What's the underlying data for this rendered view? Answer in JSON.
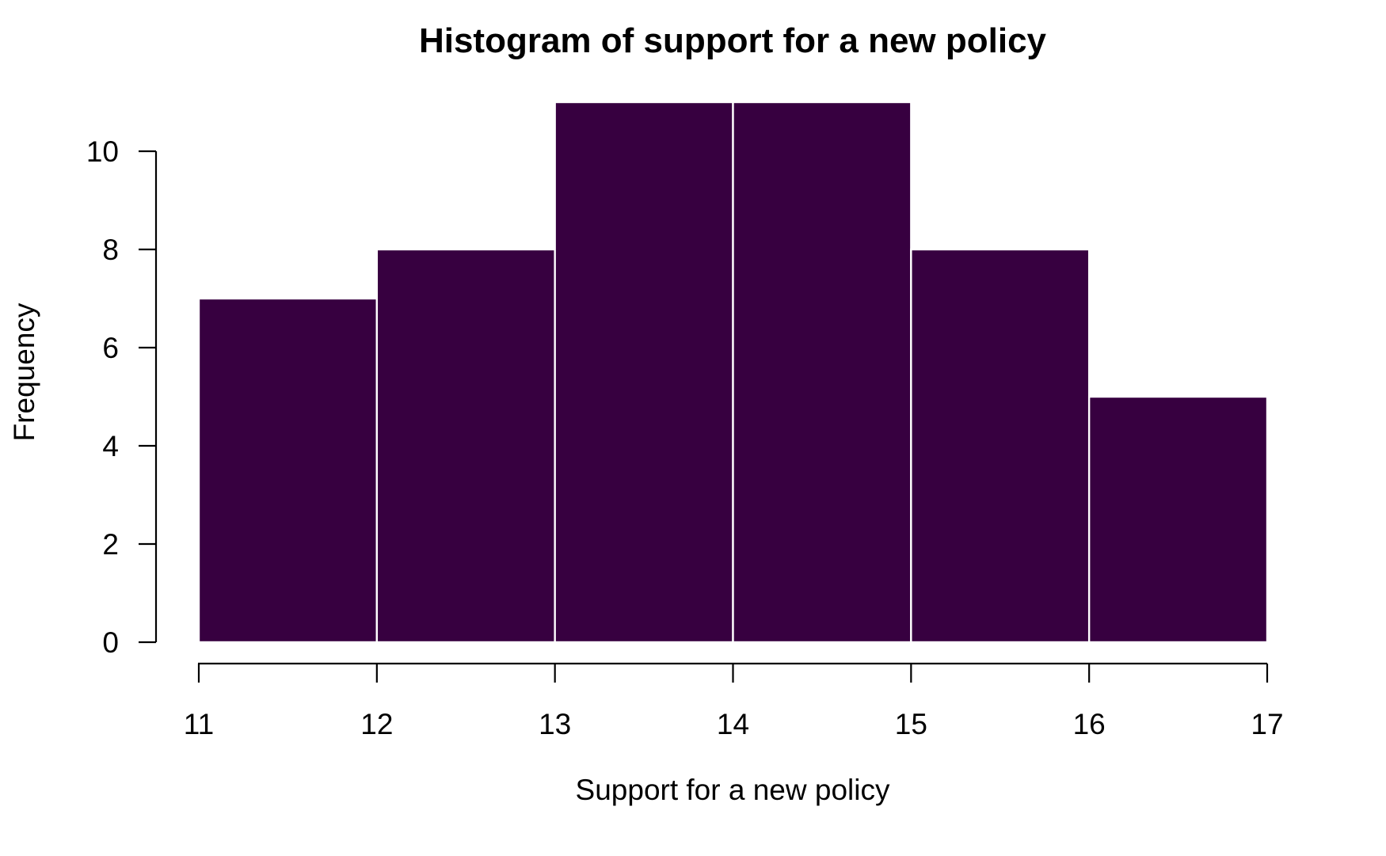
{
  "chart_data": {
    "type": "histogram",
    "title": "Histogram of support for a new policy",
    "xlabel": "Support for a new policy",
    "ylabel": "Frequency",
    "bins": [
      {
        "start": 11,
        "end": 12,
        "count": 7
      },
      {
        "start": 12,
        "end": 13,
        "count": 8
      },
      {
        "start": 13,
        "end": 14,
        "count": 11
      },
      {
        "start": 14,
        "end": 15,
        "count": 11
      },
      {
        "start": 15,
        "end": 16,
        "count": 8
      },
      {
        "start": 16,
        "end": 17,
        "count": 5
      }
    ],
    "xticks": [
      "11",
      "12",
      "13",
      "14",
      "15",
      "16",
      "17"
    ],
    "yticks": [
      "0",
      "2",
      "4",
      "6",
      "8",
      "10"
    ],
    "xlim": [
      11,
      17
    ],
    "ylim": [
      0,
      11
    ],
    "grid": false,
    "legend": "none",
    "bar_color": "#370040",
    "edge_color": "#ffffff"
  }
}
